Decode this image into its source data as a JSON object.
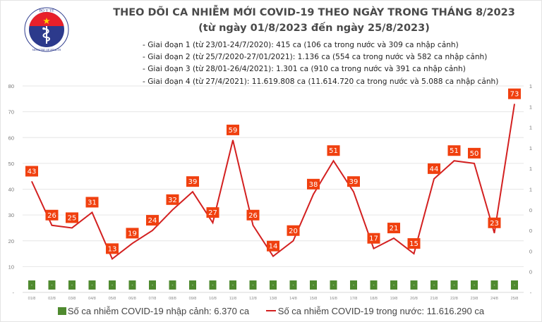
{
  "header": {
    "logo_text_top": "BỘ Y TẾ",
    "logo_text_bottom": "MINISTRY OF HEALTH",
    "title": "THEO DÕI CA NHIỄM MỚI COVID-19 THEO NGÀY TRONG THÁNG 8/2023",
    "subtitle": "(từ ngày 01/8/2023 đến ngày 25/8/2023)",
    "notes": [
      "- Giai đoạn 1 (từ 23/01-24/7/2020): 415 ca (106 ca trong nước và 309 ca nhập cảnh)",
      "- Giai đoạn 2 (từ 25/7/2020-27/01/2021): 1.136 ca (554 ca trong nước và 582 ca nhập cảnh)",
      "- Giai đoạn 3 (từ 28/01-26/4/2021): 1.301 ca (910 ca trong nước và 391 ca nhập cảnh)",
      "- Giai đoạn 4 (từ 27/4/2021): 11.619.808 ca (11.614.720 ca trong nước và 5.088 ca nhập cảnh)"
    ]
  },
  "colors": {
    "line": "#d32020",
    "label_box": "#f0400f",
    "bar": "#4f8a2f",
    "grid": "#e6e6e6",
    "axis_text": "#777777"
  },
  "chart_data": {
    "type": "bar+line",
    "title": "THEO DÕI CA NHIỄM MỚI COVID-19 THEO NGÀY TRONG THÁNG 8/2023",
    "categories": [
      "01/8",
      "02/8",
      "03/8",
      "04/8",
      "05/8",
      "06/8",
      "07/8",
      "08/8",
      "09/8",
      "10/8",
      "11/8",
      "12/8",
      "13/8",
      "14/8",
      "15/8",
      "16/8",
      "17/8",
      "18/8",
      "19/8",
      "20/8",
      "21/8",
      "22/8",
      "23/8",
      "24/8",
      "25/8"
    ],
    "series": [
      {
        "name": "Số ca nhiễm COVID-19 nhập cảnh: 6.370 ca",
        "type": "bar",
        "axis": "right",
        "values": [
          0,
          0,
          0,
          0,
          0,
          0,
          0,
          0,
          0,
          0,
          0,
          0,
          0,
          0,
          0,
          0,
          0,
          0,
          0,
          0,
          0,
          0,
          0,
          0,
          0
        ],
        "data_labels": [
          "-",
          "-",
          "-",
          "-",
          "-",
          "-",
          "-",
          "-",
          "-",
          "-",
          "-",
          "-",
          "-",
          "-",
          "-",
          "-",
          "-",
          "-",
          "-",
          "-",
          "-",
          "-",
          "-",
          "-",
          "-"
        ]
      },
      {
        "name": "Số ca nhiễm COVID-19 trong nước: 11.616.290 ca",
        "type": "line",
        "axis": "left",
        "values": [
          43,
          26,
          25,
          31,
          13,
          19,
          24,
          32,
          39,
          27,
          59,
          26,
          14,
          20,
          38,
          51,
          39,
          17,
          21,
          15,
          44,
          51,
          50,
          23,
          73
        ]
      }
    ],
    "y_left": {
      "ylim": [
        0,
        80
      ],
      "ticks": [
        "-",
        "10",
        "20",
        "30",
        "40",
        "50",
        "60",
        "70",
        "80"
      ]
    },
    "y_right": {
      "ticks": [
        "-",
        "0",
        "0",
        "0",
        "0",
        "1",
        "1",
        "1",
        "1",
        "1",
        "1"
      ]
    },
    "grid": true,
    "legend_position": "bottom"
  }
}
